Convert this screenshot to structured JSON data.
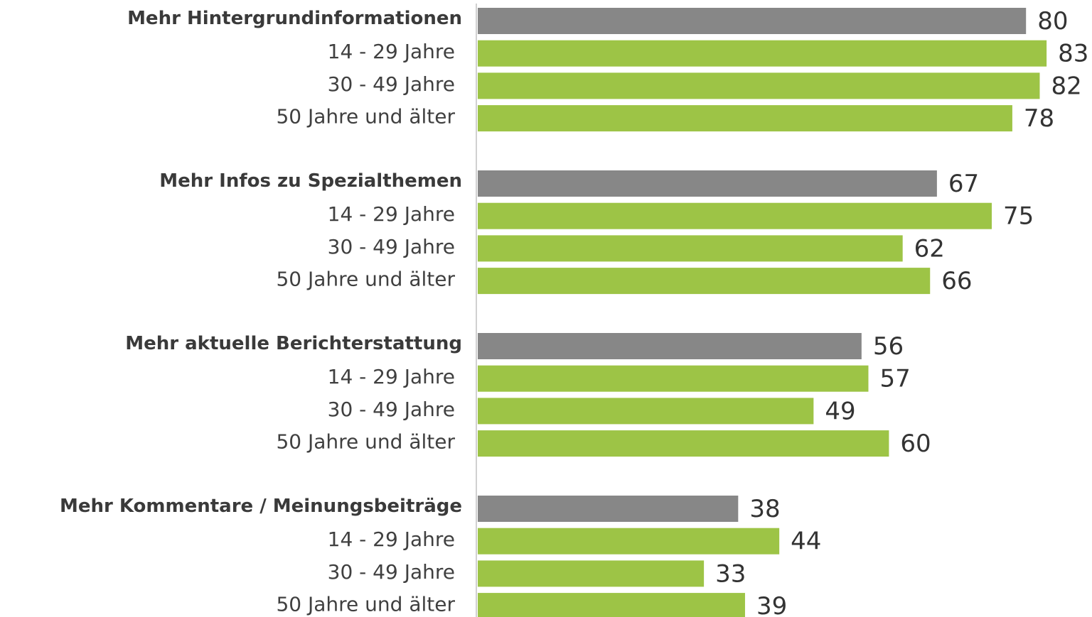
{
  "chart_data": {
    "type": "bar",
    "orientation": "horizontal",
    "total_color": "#878787",
    "sub_color": "#9dc446",
    "groups": [
      {
        "name": "Mehr Hintergrundinformationen",
        "value": 80,
        "categories": [
          "14 - 29 Jahre",
          "30 - 49 Jahre",
          "50 Jahre und älter"
        ],
        "values": [
          83,
          82,
          78
        ]
      },
      {
        "name": "Mehr Infos zu Spezialthemen",
        "value": 67,
        "categories": [
          "14 - 29 Jahre",
          "30 - 49 Jahre",
          "50 Jahre und älter"
        ],
        "values": [
          75,
          62,
          66
        ]
      },
      {
        "name": "Mehr aktuelle Berichterstattung",
        "value": 56,
        "categories": [
          "14 - 29 Jahre",
          "30 - 49 Jahre",
          "50 Jahre und älter"
        ],
        "values": [
          57,
          49,
          60
        ]
      },
      {
        "name": "Mehr Kommentare / Meinungsbeiträge",
        "value": 38,
        "categories": [
          "14 - 29 Jahre",
          "30 - 49 Jahre",
          "50 Jahre und älter"
        ],
        "values": [
          44,
          33,
          39
        ]
      }
    ]
  }
}
